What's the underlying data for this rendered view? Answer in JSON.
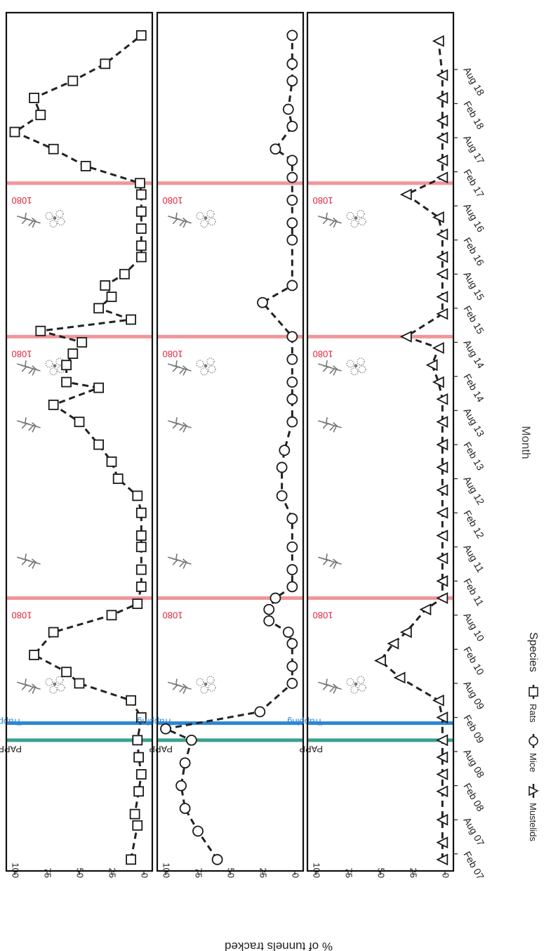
{
  "figure": {
    "ylabel": "% of tunnels tracked",
    "xlabel": "Month",
    "legend_title": "Species",
    "legend_position": "bottom",
    "orientation": "rotated-90-clockwise",
    "event_labels": {
      "papp": "PAPP",
      "trapping": "Trapping",
      "poison": "1080"
    },
    "colors": {
      "papp": "#3aa08e",
      "trapping": "#2b86d6",
      "poison": "#ef8a8f",
      "poison_text": "#e0213b",
      "marker": "#1a1a1a",
      "line": "#222222",
      "plant": "#777777"
    }
  },
  "chart_data": {
    "type": "line",
    "x_ticks": [
      "Feb 07",
      "Aug 07",
      "Feb 08",
      "Aug 08",
      "Feb 09",
      "Aug 09",
      "Feb 10",
      "Aug 10",
      "Feb 11",
      "Aug 11",
      "Feb 12",
      "Aug 12",
      "Feb 13",
      "Aug 13",
      "Feb 14",
      "Aug 14",
      "Feb 15",
      "Aug 15",
      "Feb 16",
      "Aug 16",
      "Feb 17",
      "Aug 17",
      "Feb 18",
      "Aug 18"
    ],
    "x_range": [
      "2006-11",
      "2019-06"
    ],
    "y_ticks": [
      0,
      25,
      50,
      75,
      100
    ],
    "ylim": [
      0,
      100
    ],
    "grid": false,
    "events": [
      {
        "type": "papp",
        "label": "PAPP",
        "date": "2008-10"
      },
      {
        "type": "trapping",
        "label": "Trapping",
        "date": "2009-01"
      },
      {
        "type": "poison",
        "label": "1080",
        "date": "2010-11"
      },
      {
        "type": "poison",
        "label": "1080",
        "date": "2014-09"
      },
      {
        "type": "poison",
        "label": "1080",
        "date": "2016-12"
      }
    ],
    "plant_icons": [
      {
        "date": "2009-07",
        "flower": true
      },
      {
        "date": "2011-05",
        "flower": false
      },
      {
        "date": "2013-05",
        "flower": false
      },
      {
        "date": "2014-03",
        "flower": true
      },
      {
        "date": "2016-05",
        "flower": true
      }
    ],
    "series": [
      {
        "name": "Rats",
        "marker": "square",
        "points": [
          [
            "2007-01",
            10
          ],
          [
            "2007-07",
            5
          ],
          [
            "2007-09",
            7
          ],
          [
            "2008-01",
            4
          ],
          [
            "2008-04",
            2
          ],
          [
            "2008-07",
            4
          ],
          [
            "2008-10",
            5
          ],
          [
            "2009-02",
            2
          ],
          [
            "2009-05",
            10
          ],
          [
            "2009-08",
            50
          ],
          [
            "2009-10",
            60
          ],
          [
            "2010-01",
            85
          ],
          [
            "2010-05",
            70
          ],
          [
            "2010-08",
            25
          ],
          [
            "2010-10",
            5
          ],
          [
            "2011-01",
            2
          ],
          [
            "2011-04",
            2
          ],
          [
            "2011-08",
            2
          ],
          [
            "2011-10",
            2
          ],
          [
            "2012-02",
            2
          ],
          [
            "2012-05",
            5
          ],
          [
            "2012-08",
            20
          ],
          [
            "2012-11",
            25
          ],
          [
            "2013-02",
            35
          ],
          [
            "2013-06",
            50
          ],
          [
            "2013-09",
            70
          ],
          [
            "2013-12",
            35
          ],
          [
            "2014-01",
            60
          ],
          [
            "2014-04",
            60
          ],
          [
            "2014-06",
            55
          ],
          [
            "2014-08",
            48
          ],
          [
            "2014-10",
            80
          ],
          [
            "2014-12",
            10
          ],
          [
            "2015-02",
            35
          ],
          [
            "2015-04",
            25
          ],
          [
            "2015-06",
            30
          ],
          [
            "2015-08",
            15
          ],
          [
            "2015-11",
            2
          ],
          [
            "2016-01",
            2
          ],
          [
            "2016-04",
            2
          ],
          [
            "2016-07",
            2
          ],
          [
            "2016-10",
            2
          ],
          [
            "2016-12",
            3
          ],
          [
            "2017-03",
            45
          ],
          [
            "2017-06",
            70
          ],
          [
            "2017-09",
            100
          ],
          [
            "2017-12",
            80
          ],
          [
            "2018-03",
            85
          ],
          [
            "2018-06",
            55
          ],
          [
            "2018-09",
            30
          ],
          [
            "2019-02",
            2
          ]
        ]
      },
      {
        "name": "Mice",
        "marker": "circle",
        "points": [
          [
            "2007-01",
            60
          ],
          [
            "2007-06",
            75
          ],
          [
            "2007-10",
            85
          ],
          [
            "2008-02",
            88
          ],
          [
            "2008-06",
            85
          ],
          [
            "2008-10",
            80
          ],
          [
            "2008-12",
            100
          ],
          [
            "2009-03",
            27
          ],
          [
            "2009-08",
            2
          ],
          [
            "2009-11",
            2
          ],
          [
            "2010-03",
            2
          ],
          [
            "2010-05",
            5
          ],
          [
            "2010-07",
            20
          ],
          [
            "2010-09",
            20
          ],
          [
            "2010-11",
            15
          ],
          [
            "2011-01",
            2
          ],
          [
            "2011-04",
            2
          ],
          [
            "2011-08",
            2
          ],
          [
            "2012-01",
            2
          ],
          [
            "2012-05",
            10
          ],
          [
            "2012-10",
            10
          ],
          [
            "2013-01",
            8
          ],
          [
            "2013-06",
            2
          ],
          [
            "2013-10",
            2
          ],
          [
            "2014-01",
            2
          ],
          [
            "2014-05",
            2
          ],
          [
            "2014-09",
            2
          ],
          [
            "2015-03",
            25
          ],
          [
            "2015-06",
            2
          ],
          [
            "2016-02",
            2
          ],
          [
            "2016-05",
            2
          ],
          [
            "2016-09",
            2
          ],
          [
            "2017-01",
            2
          ],
          [
            "2017-04",
            2
          ],
          [
            "2017-06",
            15
          ],
          [
            "2017-10",
            2
          ],
          [
            "2018-01",
            5
          ],
          [
            "2018-06",
            2
          ],
          [
            "2018-09",
            2
          ],
          [
            "2019-02",
            2
          ]
        ]
      },
      {
        "name": "Mustelids",
        "marker": "triangle",
        "points": [
          [
            "2007-01",
            2
          ],
          [
            "2007-04",
            2
          ],
          [
            "2007-08",
            2
          ],
          [
            "2008-01",
            2
          ],
          [
            "2008-04",
            2
          ],
          [
            "2008-07",
            2
          ],
          [
            "2008-10",
            2
          ],
          [
            "2009-02",
            2
          ],
          [
            "2009-05",
            5
          ],
          [
            "2009-09",
            35
          ],
          [
            "2009-12",
            50
          ],
          [
            "2010-03",
            40
          ],
          [
            "2010-05",
            30
          ],
          [
            "2010-09",
            15
          ],
          [
            "2010-11",
            2
          ],
          [
            "2011-02",
            2
          ],
          [
            "2011-06",
            2
          ],
          [
            "2011-10",
            2
          ],
          [
            "2012-02",
            2
          ],
          [
            "2012-06",
            2
          ],
          [
            "2012-10",
            2
          ],
          [
            "2013-02",
            2
          ],
          [
            "2013-06",
            2
          ],
          [
            "2013-10",
            2
          ],
          [
            "2014-01",
            5
          ],
          [
            "2014-04",
            10
          ],
          [
            "2014-07",
            5
          ],
          [
            "2014-09",
            30
          ],
          [
            "2015-01",
            2
          ],
          [
            "2015-04",
            2
          ],
          [
            "2015-08",
            2
          ],
          [
            "2015-11",
            2
          ],
          [
            "2016-03",
            2
          ],
          [
            "2016-06",
            5
          ],
          [
            "2016-10",
            30
          ],
          [
            "2017-01",
            2
          ],
          [
            "2017-04",
            2
          ],
          [
            "2017-08",
            2
          ],
          [
            "2017-11",
            2
          ],
          [
            "2018-03",
            2
          ],
          [
            "2018-07",
            2
          ],
          [
            "2019-01",
            5
          ]
        ]
      }
    ]
  }
}
